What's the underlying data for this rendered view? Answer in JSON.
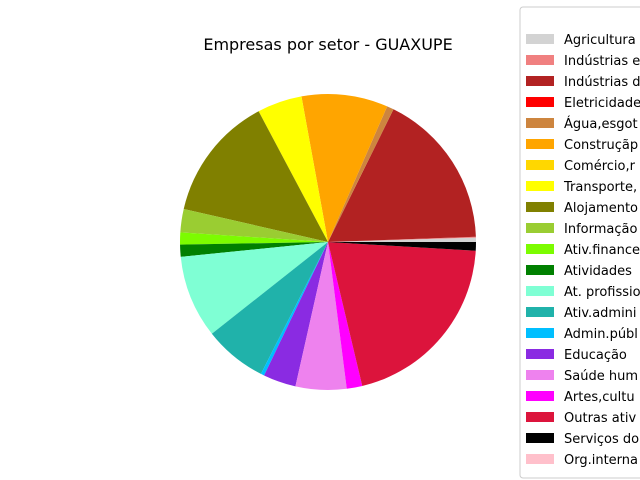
{
  "chart_data": {
    "type": "pie",
    "title": "Empresas por setor - GUAXUPE",
    "legend_position": "right",
    "start_angle_deg": 0,
    "direction": "counterclockwise",
    "units": "percent",
    "slices": [
      {
        "label": "Agricultura",
        "value": 0.5,
        "color": "#d3d3d3"
      },
      {
        "label": "Indústrias e",
        "value": 0.1,
        "color": "#f08080"
      },
      {
        "label": "Indústrias d",
        "value": 18.2,
        "color": "#b22222"
      },
      {
        "label": "Eletricidade",
        "value": 0.0,
        "color": "#ff0000"
      },
      {
        "label": "Água,esgot",
        "value": 0.8,
        "color": "#cd853f"
      },
      {
        "label": "Construçãp",
        "value": 10.0,
        "color": "#ffa500"
      },
      {
        "label": "Comércio,r",
        "value": 0.0,
        "color": "#ffd700"
      },
      {
        "label": "Transporte,",
        "value": 5.2,
        "color": "#ffff00"
      },
      {
        "label": "Alojamento",
        "value": 14.5,
        "color": "#808000"
      },
      {
        "label": "Informação",
        "value": 2.7,
        "color": "#9acd32"
      },
      {
        "label": "Ativ.finance",
        "value": 1.4,
        "color": "#7cfc00"
      },
      {
        "label": "Atividades",
        "value": 1.4,
        "color": "#008000"
      },
      {
        "label": "At. profissio",
        "value": 9.6,
        "color": "#7fffd4"
      },
      {
        "label": "Ativ.admini",
        "value": 7.3,
        "color": "#20b2aa"
      },
      {
        "label": "Admin.públ",
        "value": 0.4,
        "color": "#00bfff"
      },
      {
        "label": "Educação",
        "value": 3.8,
        "color": "#8a2be2"
      },
      {
        "label": "Saúde hum",
        "value": 5.9,
        "color": "#ee82ee"
      },
      {
        "label": "Artes,cultu",
        "value": 1.8,
        "color": "#ff00ff"
      },
      {
        "label": "Outras ativ",
        "value": 21.6,
        "color": "#dc143c"
      },
      {
        "label": "Serviços do",
        "value": 1.0,
        "color": "#000000"
      },
      {
        "label": "Org.interna",
        "value": 0.0,
        "color": "#ffc0cb"
      }
    ]
  }
}
